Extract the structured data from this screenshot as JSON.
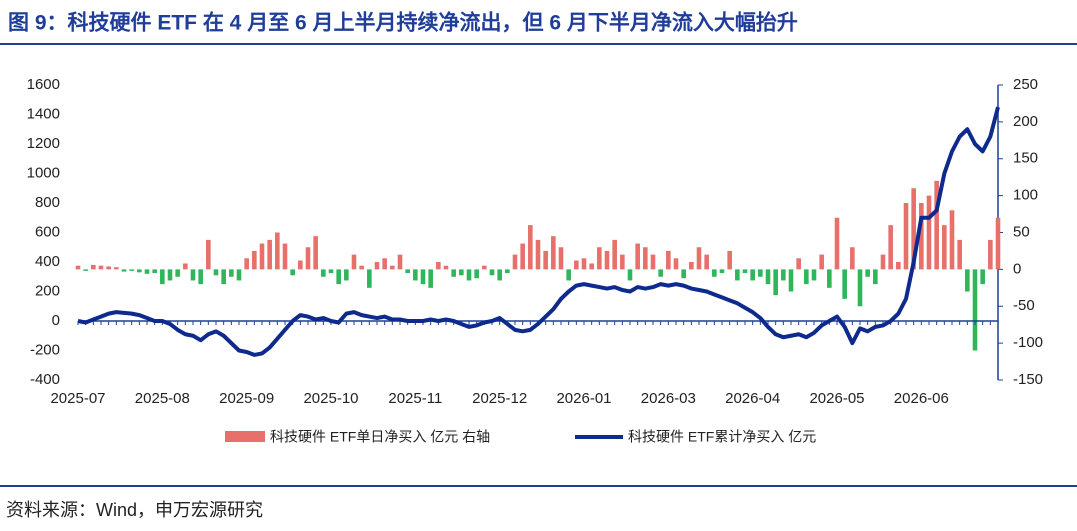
{
  "chart_data": {
    "type": "combo",
    "title": "图 9：科技硬件 ETF 在 4 月至 6 月上半月持续净流出，但 6 月下半月净流入大幅抬升",
    "source": "资料来源：Wind，申万宏源研究",
    "categories": [
      "2025-07",
      null,
      null,
      null,
      null,
      null,
      null,
      null,
      null,
      null,
      null,
      "2025-08",
      null,
      null,
      null,
      null,
      null,
      null,
      null,
      null,
      null,
      null,
      "2025-09",
      null,
      null,
      null,
      null,
      null,
      null,
      null,
      null,
      null,
      null,
      "2025-10",
      null,
      null,
      null,
      null,
      null,
      null,
      null,
      null,
      null,
      null,
      "2025-11",
      null,
      null,
      null,
      null,
      null,
      null,
      null,
      null,
      null,
      null,
      "2025-12",
      null,
      null,
      null,
      null,
      null,
      null,
      null,
      null,
      null,
      null,
      "2026-01",
      null,
      null,
      null,
      null,
      null,
      null,
      null,
      null,
      null,
      null,
      "2026-03",
      null,
      null,
      null,
      null,
      null,
      null,
      null,
      null,
      null,
      null,
      "2026-04",
      null,
      null,
      null,
      null,
      null,
      null,
      null,
      null,
      null,
      null,
      "2026-05",
      null,
      null,
      null,
      null,
      null,
      null,
      null,
      null,
      null,
      null,
      "2026-06",
      null,
      null,
      null,
      null,
      null,
      null,
      null,
      null,
      null,
      null
    ],
    "series": [
      {
        "name": "科技硬件 ETF单日净买入 亿元 右轴",
        "type": "bar",
        "axis": "y2",
        "color": "#e8706b",
        "negative_color": "#2fb65a",
        "values": [
          5,
          -2,
          6,
          5,
          4,
          3,
          -3,
          -2,
          -4,
          -6,
          -5,
          -20,
          -15,
          -10,
          8,
          -15,
          -20,
          40,
          -8,
          -20,
          -10,
          -15,
          15,
          25,
          35,
          40,
          50,
          35,
          -8,
          12,
          30,
          45,
          -10,
          -5,
          -20,
          -15,
          20,
          5,
          -25,
          10,
          15,
          5,
          20,
          -5,
          -15,
          -20,
          -25,
          10,
          5,
          -10,
          -8,
          -15,
          -12,
          5,
          -8,
          -15,
          -5,
          20,
          35,
          60,
          40,
          25,
          45,
          30,
          -15,
          12,
          15,
          8,
          30,
          25,
          40,
          20,
          -15,
          35,
          30,
          20,
          -10,
          25,
          15,
          -12,
          10,
          30,
          20,
          -10,
          -5,
          25,
          -15,
          -5,
          -15,
          -10,
          -20,
          -35,
          -15,
          -30,
          15,
          -20,
          -15,
          20,
          -25,
          70,
          -40,
          30,
          -50,
          -10,
          -20,
          20,
          60,
          10,
          90,
          110,
          90,
          100,
          120,
          60,
          80,
          40,
          -30,
          -110,
          -20,
          40,
          70
        ]
      },
      {
        "name": "科技硬件 ETF累计净买入 亿元",
        "type": "line",
        "axis": "y",
        "color": "#0e2a8c",
        "values": [
          0,
          -10,
          10,
          30,
          50,
          60,
          55,
          50,
          40,
          20,
          0,
          0,
          -20,
          -60,
          -90,
          -100,
          -130,
          -90,
          -70,
          -100,
          -150,
          -200,
          -210,
          -230,
          -220,
          -180,
          -120,
          -60,
          0,
          40,
          30,
          10,
          20,
          0,
          -10,
          50,
          60,
          40,
          30,
          20,
          30,
          10,
          10,
          0,
          0,
          0,
          10,
          0,
          10,
          0,
          -20,
          -40,
          -30,
          -10,
          0,
          20,
          -20,
          -60,
          -70,
          -60,
          -20,
          30,
          80,
          150,
          200,
          240,
          250,
          240,
          230,
          220,
          230,
          210,
          200,
          230,
          220,
          230,
          250,
          240,
          250,
          240,
          220,
          210,
          200,
          180,
          160,
          140,
          120,
          90,
          60,
          20,
          -40,
          -90,
          -110,
          -100,
          -90,
          -110,
          -80,
          -30,
          0,
          30,
          -40,
          -150,
          -50,
          -70,
          -40,
          -30,
          0,
          50,
          150,
          400,
          700,
          700,
          750,
          1000,
          1150,
          1250,
          1300,
          1200,
          1150,
          1250,
          1450
        ]
      }
    ],
    "ylim": [
      -400,
      1600
    ],
    "yticks": [
      -400,
      -200,
      0,
      200,
      400,
      600,
      800,
      1000,
      1200,
      1400,
      1600
    ],
    "y2lim": [
      -150,
      250
    ],
    "y2ticks": [
      -150,
      -100,
      -50,
      0,
      50,
      100,
      150,
      200,
      250
    ],
    "grid": false,
    "legend": "bottom"
  }
}
